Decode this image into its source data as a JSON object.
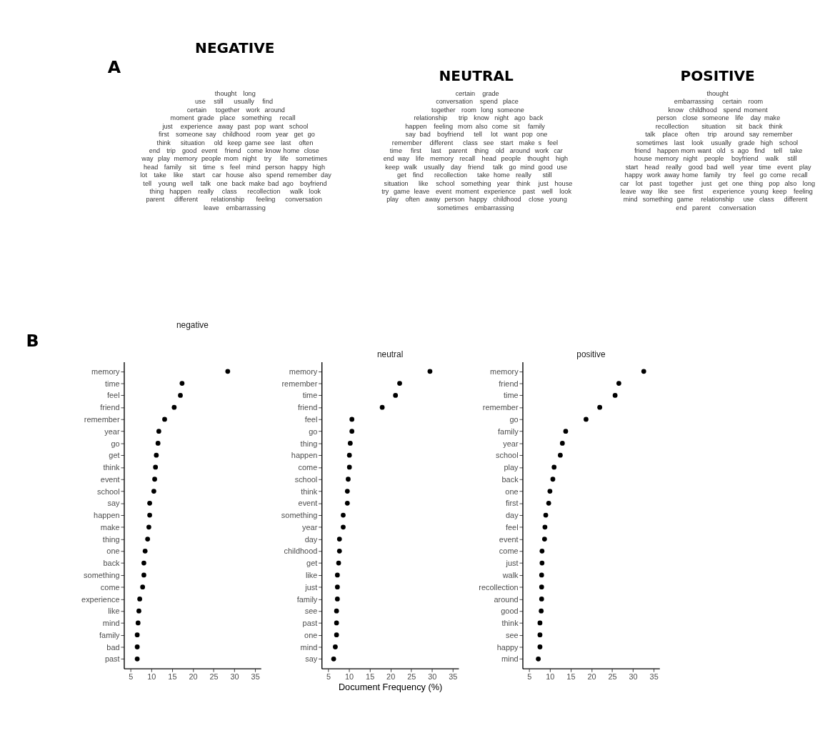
{
  "chart_data": [
    {
      "type": "other",
      "title": "NEGATIVE",
      "annotations": [
        "A"
      ],
      "color": "#333333",
      "categories": [
        "thought",
        "long",
        "use",
        "still",
        "usually",
        "find",
        "certain",
        "together",
        "work",
        "around",
        "moment",
        "grade",
        "place",
        "something",
        "recall",
        "just",
        "experience",
        "away",
        "past",
        "pop",
        "want",
        "school",
        "first",
        "someone",
        "say",
        "childhood",
        "room",
        "year",
        "get",
        "go",
        "think",
        "situation",
        "old",
        "keep",
        "game",
        "see",
        "last",
        "often",
        "end",
        "trip",
        "good",
        "event",
        "friend",
        "come",
        "know",
        "home",
        "close",
        "way",
        "play",
        "memory",
        "people",
        "mom",
        "night",
        "try",
        "life",
        "sometimes",
        "head",
        "family",
        "sit",
        "time",
        "s",
        "feel",
        "mind",
        "person",
        "happy",
        "high",
        "lot",
        "take",
        "like",
        "start",
        "car",
        "house",
        "also",
        "spend",
        "remember",
        "day",
        "tell",
        "young",
        "well",
        "talk",
        "one",
        "back",
        "make",
        "bad",
        "ago",
        "boyfriend",
        "thing",
        "happen",
        "really",
        "class",
        "recollection",
        "walk",
        "look",
        "parent",
        "different",
        "relationship",
        "feeling",
        "conversation",
        "leave",
        "embarrassing"
      ]
    },
    {
      "type": "other",
      "title": "NEUTRAL",
      "color": "#333333",
      "categories": [
        "certain",
        "grade",
        "conversation",
        "spend",
        "place",
        "together",
        "room",
        "long",
        "someone",
        "relationship",
        "trip",
        "know",
        "night",
        "ago",
        "back",
        "happen",
        "feeling",
        "mom",
        "also",
        "come",
        "sit",
        "family",
        "say",
        "bad",
        "boyfriend",
        "tell",
        "lot",
        "want",
        "pop",
        "one",
        "remember",
        "different",
        "class",
        "see",
        "start",
        "make",
        "s",
        "feel",
        "time",
        "first",
        "last",
        "parent",
        "thing",
        "old",
        "around",
        "work",
        "car",
        "end",
        "way",
        "life",
        "memory",
        "recall",
        "head",
        "people",
        "thought",
        "high",
        "keep",
        "walk",
        "usually",
        "day",
        "friend",
        "talk",
        "go",
        "mind",
        "good",
        "use",
        "get",
        "find",
        "recollection",
        "take",
        "home",
        "really",
        "still",
        "situation",
        "like",
        "school",
        "something",
        "year",
        "think",
        "just",
        "house",
        "try",
        "game",
        "leave",
        "event",
        "moment",
        "experience",
        "past",
        "well",
        "look",
        "play",
        "often",
        "away",
        "person",
        "happy",
        "childhood",
        "close",
        "young",
        "sometimes",
        "embarrassing"
      ]
    },
    {
      "type": "other",
      "title": "POSITIVE",
      "color": "#333333",
      "categories": [
        "thought",
        "embarrassing",
        "certain",
        "room",
        "know",
        "childhood",
        "spend",
        "moment",
        "person",
        "close",
        "someone",
        "life",
        "day",
        "make",
        "recollection",
        "situation",
        "sit",
        "back",
        "think",
        "talk",
        "place",
        "often",
        "trip",
        "around",
        "say",
        "remember",
        "sometimes",
        "last",
        "look",
        "usually",
        "grade",
        "high",
        "school",
        "friend",
        "happen",
        "mom",
        "want",
        "old",
        "s",
        "ago",
        "find",
        "tell",
        "take",
        "house",
        "memory",
        "night",
        "people",
        "boyfriend",
        "walk",
        "still",
        "start",
        "head",
        "really",
        "good",
        "bad",
        "well",
        "year",
        "time",
        "event",
        "play",
        "happy",
        "work",
        "away",
        "home",
        "family",
        "try",
        "feel",
        "go",
        "come",
        "recall",
        "car",
        "lot",
        "past",
        "together",
        "just",
        "get",
        "one",
        "thing",
        "pop",
        "also",
        "long",
        "leave",
        "way",
        "like",
        "see",
        "first",
        "experience",
        "young",
        "keep",
        "feeling",
        "mind",
        "something",
        "game",
        "relationship",
        "use",
        "class",
        "different",
        "end",
        "parent",
        "conversation"
      ]
    },
    {
      "type": "scatter",
      "title": "negative",
      "annotations": [
        "B"
      ],
      "orientation": "horizontal",
      "marker": "circle",
      "color": "#000000",
      "grid": false,
      "xlim": [
        3.4,
        36.4
      ],
      "xticks": [
        5,
        10,
        15,
        20,
        25,
        30,
        35
      ],
      "categories": [
        "memory",
        "time",
        "feel",
        "friend",
        "remember",
        "year",
        "go",
        "get",
        "think",
        "event",
        "school",
        "say",
        "happen",
        "make",
        "thing",
        "one",
        "back",
        "something",
        "come",
        "experience",
        "like",
        "mind",
        "family",
        "bad",
        "past"
      ],
      "values": [
        28.4,
        17.4,
        17.0,
        15.5,
        13.2,
        11.8,
        11.6,
        11.2,
        11.0,
        10.8,
        10.6,
        9.6,
        9.6,
        9.4,
        9.1,
        8.5,
        8.2,
        8.2,
        7.9,
        7.2,
        7.0,
        6.8,
        6.6,
        6.6,
        6.6
      ]
    },
    {
      "type": "scatter",
      "title": "neutral",
      "xlabel": "Document Frequency (%)",
      "orientation": "horizontal",
      "marker": "circle",
      "color": "#000000",
      "grid": false,
      "xlim": [
        3.4,
        36.4
      ],
      "xticks": [
        5,
        10,
        15,
        20,
        25,
        30,
        35
      ],
      "categories": [
        "memory",
        "remember",
        "time",
        "friend",
        "feel",
        "go",
        "thing",
        "happen",
        "come",
        "school",
        "think",
        "event",
        "something",
        "year",
        "day",
        "childhood",
        "get",
        "like",
        "just",
        "family",
        "see",
        "past",
        "one",
        "mind",
        "say"
      ],
      "values": [
        29.5,
        22.2,
        21.2,
        18.0,
        10.7,
        10.7,
        10.3,
        10.1,
        10.1,
        9.8,
        9.6,
        9.6,
        8.6,
        8.6,
        7.7,
        7.7,
        7.5,
        7.2,
        7.2,
        7.2,
        7.0,
        7.0,
        7.0,
        6.7,
        6.3
      ]
    },
    {
      "type": "scatter",
      "title": "positive",
      "orientation": "horizontal",
      "marker": "circle",
      "color": "#000000",
      "grid": false,
      "xlim": [
        3.4,
        36.4
      ],
      "xticks": [
        5,
        10,
        15,
        20,
        25,
        30,
        35
      ],
      "categories": [
        "memory",
        "friend",
        "time",
        "remember",
        "go",
        "family",
        "year",
        "school",
        "play",
        "back",
        "one",
        "first",
        "day",
        "feel",
        "event",
        "come",
        "just",
        "walk",
        "recollection",
        "around",
        "good",
        "think",
        "see",
        "happy",
        "mind"
      ],
      "values": [
        32.6,
        26.6,
        25.7,
        22.0,
        18.7,
        13.8,
        13.0,
        12.5,
        11.0,
        10.7,
        10.0,
        9.7,
        9.0,
        8.8,
        8.7,
        8.1,
        8.1,
        8.0,
        8.0,
        8.0,
        7.9,
        7.6,
        7.6,
        7.6,
        7.2
      ]
    }
  ]
}
